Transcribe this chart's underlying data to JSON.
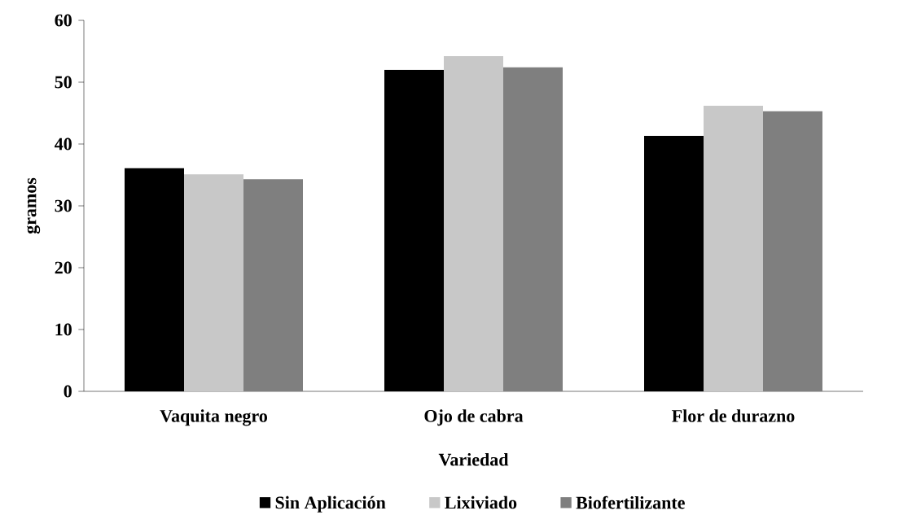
{
  "chart_data": {
    "type": "bar",
    "xlabel": "Variedad",
    "ylabel": "gramos",
    "categories": [
      "Vaquita negro",
      "Ojo de cabra",
      "Flor de durazno"
    ],
    "series": [
      {
        "name": "Sin Aplicación",
        "color": "#000000",
        "values": [
          36.1,
          52.0,
          41.3
        ]
      },
      {
        "name": "Lixiviado",
        "color": "#c8c8c8",
        "values": [
          35.1,
          54.2,
          46.2
        ]
      },
      {
        "name": "Biofertilizante",
        "color": "#7f7f7f",
        "values": [
          34.3,
          52.4,
          45.3
        ]
      }
    ],
    "ylim": [
      0,
      60
    ],
    "yticks": [
      0,
      10,
      20,
      30,
      40,
      50,
      60
    ],
    "legend": "bottom"
  }
}
